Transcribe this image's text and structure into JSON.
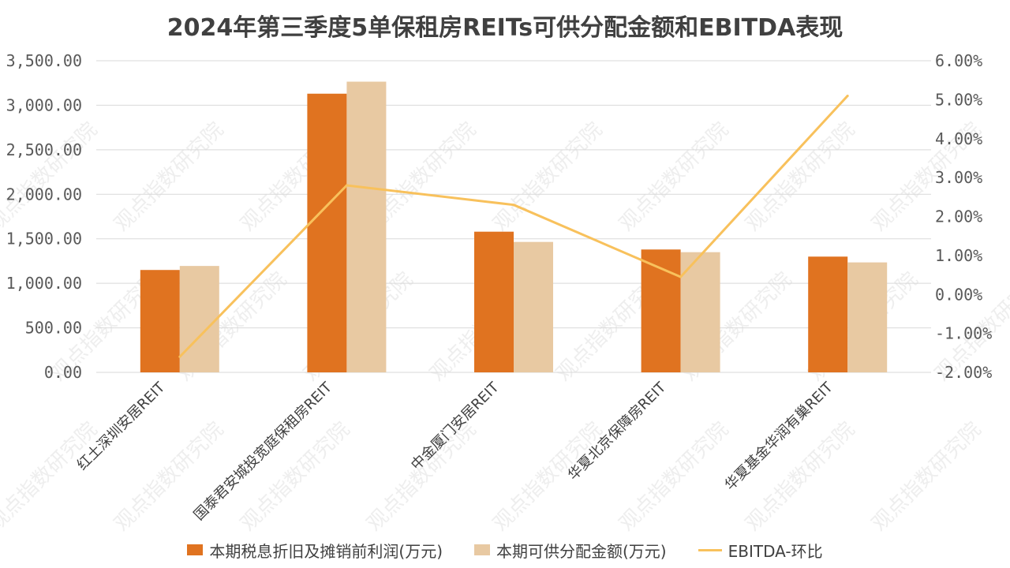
{
  "chart_data": {
    "type": "bar",
    "title": "2024年第三季度5单保租房REITs可供分配金额和EBITDA表现",
    "categories": [
      "红土深圳安居REIT",
      "国泰君安城投宽庭保租房REIT",
      "中金厦门安居REIT",
      "华夏北京保障房REIT",
      "华夏基金华润有巢REIT"
    ],
    "series": [
      {
        "name": "本期税息折旧及摊销前利润(万元)",
        "type": "bar",
        "axis": "left",
        "color": "#E07320",
        "values": [
          1150,
          3130,
          1580,
          1380,
          1300
        ]
      },
      {
        "name": "本期可供分配金额(万元)",
        "type": "bar",
        "axis": "left",
        "color": "#E8C9A2",
        "values": [
          1195,
          3265,
          1465,
          1350,
          1235
        ]
      },
      {
        "name": "EBITDA-环比",
        "type": "line",
        "axis": "right",
        "color": "#F8C15C",
        "values": [
          -1.6,
          2.8,
          2.3,
          0.45,
          5.1
        ]
      }
    ],
    "yaxis_left": {
      "min": 0,
      "max": 3500,
      "ticks": [
        "0.00",
        "500.00",
        "1,000.00",
        "1,500.00",
        "2,000.00",
        "2,500.00",
        "3,000.00",
        "3,500.00"
      ]
    },
    "yaxis_right": {
      "min": -2,
      "max": 6,
      "ticks": [
        "-2.00%",
        "-1.00%",
        "0.00%",
        "1.00%",
        "2.00%",
        "3.00%",
        "4.00%",
        "5.00%",
        "6.00%"
      ]
    },
    "grid": true,
    "legend": "bottom",
    "watermark": "观点指数研究院"
  }
}
